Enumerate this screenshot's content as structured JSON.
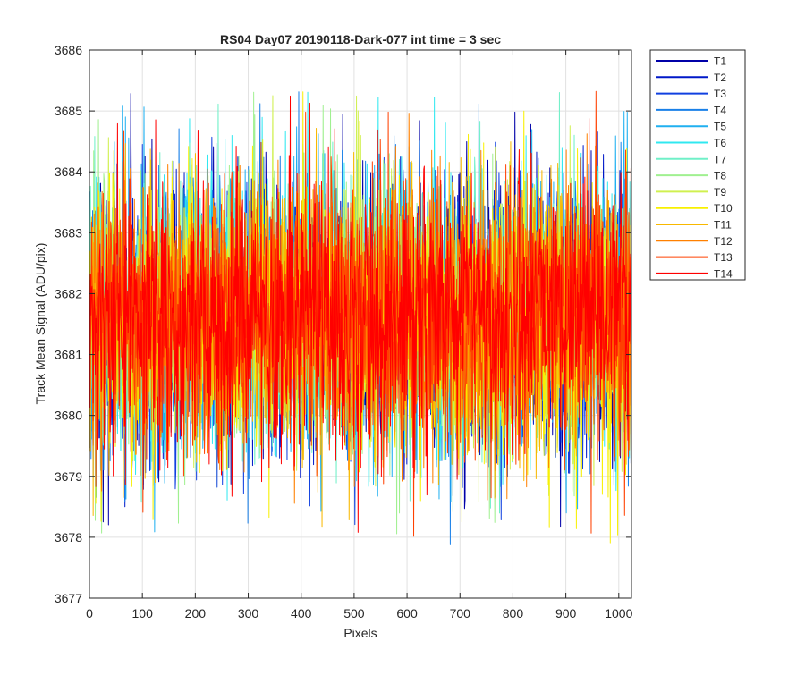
{
  "chart_data": {
    "type": "line",
    "title": "RS04 Day07 20190118-Dark-077 int time = 3 sec",
    "xlabel": "Pixels",
    "ylabel": "Track Mean Signal (ADU/pix)",
    "xlim": [
      0,
      1024
    ],
    "ylim": [
      3677,
      3686
    ],
    "xticks": [
      0,
      100,
      200,
      300,
      400,
      500,
      600,
      700,
      800,
      900,
      1000
    ],
    "yticks": [
      3677,
      3678,
      3679,
      3680,
      3681,
      3682,
      3683,
      3684,
      3685,
      3686
    ],
    "grid": true,
    "legend_position": "outside-top-right",
    "noise_model": {
      "points_per_series": 1024,
      "mean": 3681.6,
      "std": 1.1,
      "min_observed": 3677.8,
      "max_observed": 3685.35
    },
    "series": [
      {
        "name": "T1",
        "color": "#0000a8",
        "mean": 3681.6
      },
      {
        "name": "T2",
        "color": "#0018c8",
        "mean": 3681.6
      },
      {
        "name": "T3",
        "color": "#1040e0",
        "mean": 3681.6
      },
      {
        "name": "T4",
        "color": "#1a80e8",
        "mean": 3681.6
      },
      {
        "name": "T5",
        "color": "#20b0f0",
        "mean": 3681.6
      },
      {
        "name": "T6",
        "color": "#30e8f0",
        "mean": 3681.6
      },
      {
        "name": "T7",
        "color": "#70f0c8",
        "mean": 3681.6
      },
      {
        "name": "T8",
        "color": "#a0f090",
        "mean": 3681.6
      },
      {
        "name": "T9",
        "color": "#d0f050",
        "mean": 3681.6
      },
      {
        "name": "T10",
        "color": "#f8f000",
        "mean": 3681.6
      },
      {
        "name": "T11",
        "color": "#f8b800",
        "mean": 3681.6
      },
      {
        "name": "T12",
        "color": "#ff8000",
        "mean": 3681.6
      },
      {
        "name": "T13",
        "color": "#ff4000",
        "mean": 3681.6
      },
      {
        "name": "T14",
        "color": "#ff0000",
        "mean": 3681.6
      }
    ]
  }
}
